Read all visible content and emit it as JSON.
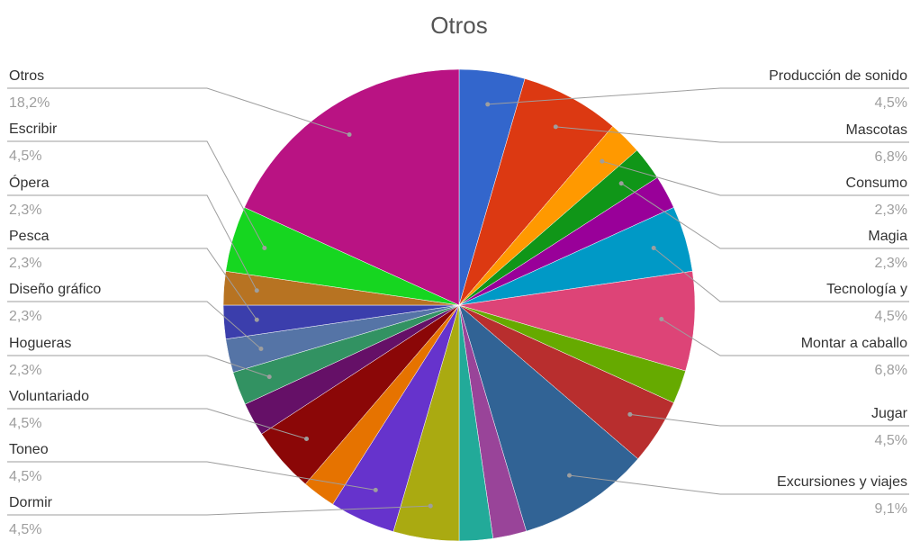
{
  "chart_data": {
    "type": "pie",
    "title": "Otros",
    "categories": [
      "Producción de sonido",
      "Mascotas",
      "Consumo",
      "Magia",
      null,
      "Tecnología y",
      "Montar a caballo",
      null,
      "Jugar",
      "Excursiones y viajes",
      null,
      null,
      "Dormir",
      "Toneo",
      null,
      "Voluntariado",
      null,
      "Hogueras",
      "Diseño gráfico",
      "Pesca",
      "Ópera",
      "Escribir",
      "Otros"
    ],
    "values": [
      4.5,
      6.8,
      2.3,
      2.3,
      2.3,
      4.5,
      6.8,
      2.3,
      4.5,
      9.1,
      2.3,
      2.3,
      4.5,
      4.5,
      2.3,
      4.5,
      2.3,
      2.3,
      2.3,
      2.3,
      2.3,
      4.5,
      18.2
    ],
    "value_labels": [
      "4,5%",
      "6,8%",
      "2,3%",
      "2,3%",
      null,
      "4,5%",
      "6,8%",
      null,
      "4,5%",
      "9,1%",
      null,
      null,
      "4,5%",
      "4,5%",
      null,
      "4,5%",
      null,
      "2,3%",
      "2,3%",
      "2,3%",
      "2,3%",
      "4,5%",
      "18,2%"
    ],
    "colors": [
      "#3366cc",
      "#dc3912",
      "#ff9900",
      "#109618",
      "#990099",
      "#0099c6",
      "#dd4477",
      "#66aa00",
      "#b82e2e",
      "#316395",
      "#994499",
      "#22aa99",
      "#aaaa11",
      "#6633cc",
      "#e67300",
      "#8b0707",
      "#651067",
      "#329262",
      "#5574a6",
      "#3b3eac",
      "#b77322",
      "#16d620",
      "#b91383"
    ]
  }
}
